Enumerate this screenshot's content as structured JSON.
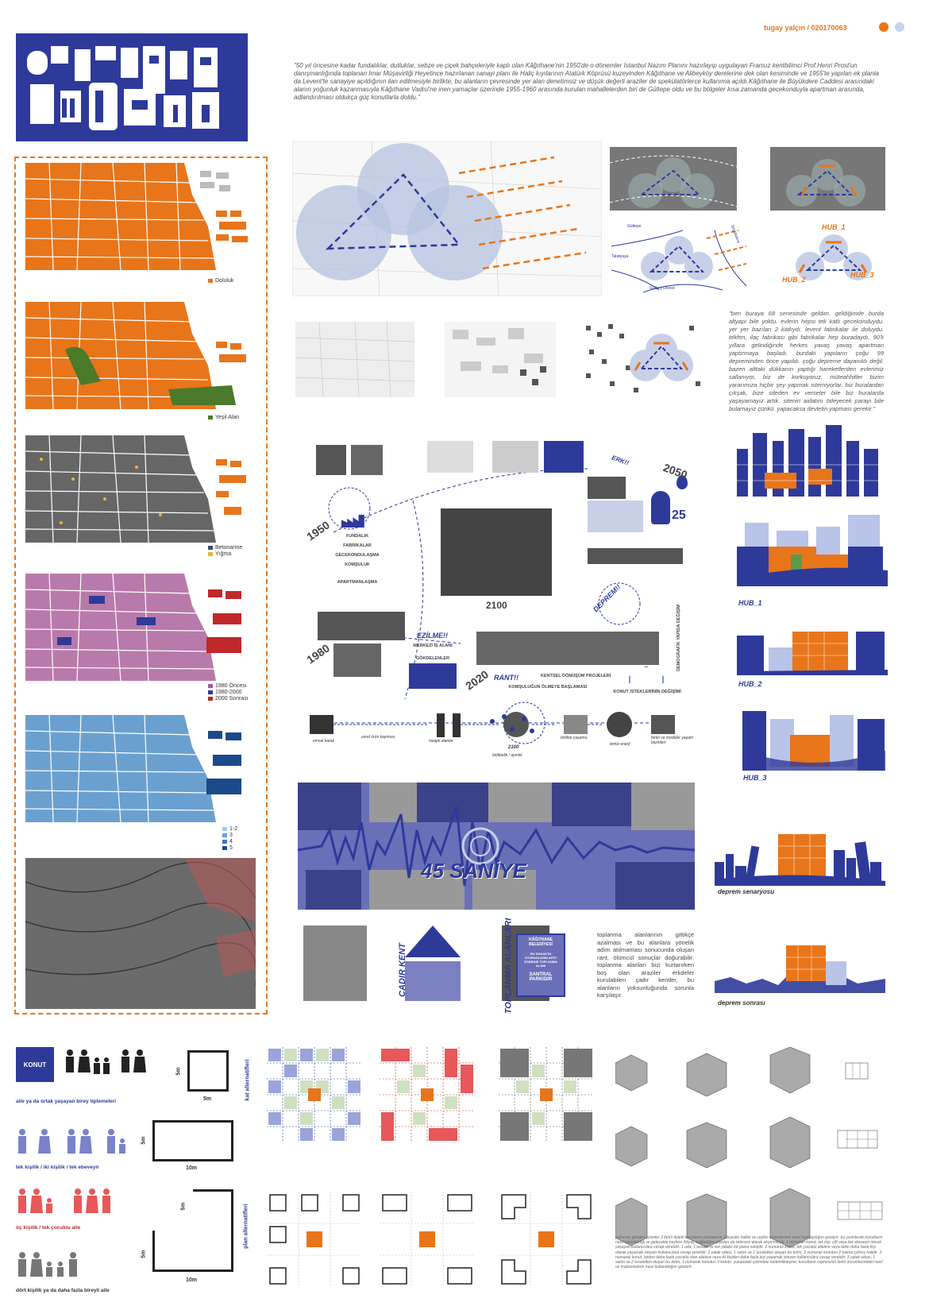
{
  "header": {
    "logo_letters": [
      "G",
      "Ü",
      "L",
      "T",
      "E",
      "P",
      "E",
      "H",
      "U",
      "B"
    ],
    "author": "tugay yalçın / 020170063",
    "accent_orange": "#e8751a",
    "accent_blue": "#2e3a9a",
    "dot_light": "#c9d3ea"
  },
  "intro_text": "\"50 yıl öncesine kadar fundalıklar, dutluklar, sebze ve çiçek bahçeleriyle kaplı olan Kâğıthane'nin 1950'de o dönemler İstanbul Nazım Planını hazırlayıp uygulayan Fransız kentbilimci Prof.Henri Prost'un danışmanlığında toplanan İmar Müşavirliği Heyetince hazırlanan sanayi planı ile Haliç kıyılarının Atatürk Köprüsü kuzeyinden Kâğıthane ve Alibeyköy derelerine dek olan kesiminde ve 1955'te yapılan ek planla da Levent'te sanayiye açıldığının ilan edilmesiyle birlikte, bu alanların çevresinde yer alan denetimsiz ve düşük değerli araziler de spekülatörlerce kullanıma açıldı.Kâğıthane ile Büyükdere Caddesi arasındaki alanın yoğunluk kazanmasıyla Kâğıthane Vadisi'ne inen yamaçlar üzerinde 1955-1960 arasında kurulan mahallelerden biri de Gültepe oldu ve bu bölgeler kısa zamanda gecekonduyla apartman arasında, adlandırılması oldukça güç konutlarla doldu.\"",
  "quote_text": "\"ben buraya 68 senesinde geldim. geldiğimde burda altyapı bile yoktu. evlerin hepsi tek katlı gecekonduydu. yer yer bazıları 2 katlıydı. levent fabrikalar ile doluydu. tekfen, ilaç fabrikası gibi fabrikalar hep buradaydı. 90'lı yıllara gelindiğinde herkes yavaş yavaş apartman yaptırmaya başladı. burdaki yapıların çoğu 99 depreminden önce yapıldı. çoğu depreme dayanıklı değil. bazen alttaki dükkanın yaptığı hareketlerden evlerimiz sallanıyor, biz de korkuyoruz. müteahhitler bizim yararımıza hiçbir şey yapmak istemiyorlar. biz buralardan çıkşak, bize siteden ev verseler bile biz buralarda yaşayamayız artık. sitenin aidatını ödeyecek parayı bile bulamayız çünkü. yapacaksa devletin yapması gerekir.\"",
  "left_maps": [
    {
      "legend": [
        {
          "label": "Doluluk",
          "color": "#e8751a"
        }
      ]
    },
    {
      "legend": [
        {
          "label": "Yeşil Alan",
          "color": "#4a7a2a"
        }
      ]
    },
    {
      "legend": [
        {
          "label": "Betonarme",
          "color": "#3d4a5a"
        },
        {
          "label": "Yığma",
          "color": "#e8b830"
        }
      ]
    },
    {
      "legend": [
        {
          "label": "1980 Öncesi",
          "color": "#a05a9a"
        },
        {
          "label": "1980-2000",
          "color": "#2e3a9a"
        },
        {
          "label": "2000 Sonrası",
          "color": "#c0282a"
        }
      ]
    },
    {
      "legend": [
        {
          "label": "1-2",
          "color": "#a8c8e8"
        },
        {
          "label": "3",
          "color": "#6aa0d0"
        },
        {
          "label": "4",
          "color": "#3a78b8"
        },
        {
          "label": "5",
          "color": "#1a4a8a"
        }
      ]
    }
  ],
  "site_labels": {
    "hub1": "HUB_1",
    "hub2": "HUB_2",
    "hub3": "HUB_3",
    "road1": "Talatpaşa",
    "road2": "Büyükdere",
    "road3": "Gültepe",
    "road4": "Gülbey Deresi"
  },
  "timeline": {
    "y1950": "1950",
    "y1980": "1980",
    "y2020": "2020",
    "y2050": "2050",
    "y2100": "2100",
    "stages": [
      "FUNDALIK",
      "FABRİKALAR",
      "GECEKONDULAŞMA",
      "KOMŞULUK",
      "APARTMANLAŞMA"
    ],
    "ezilme": "EZİLME!!",
    "merkezi": "MERKEZİ İŞ ALANI",
    "gokdelenler": "GÖKDELENLER",
    "ranti": "RANT!!",
    "kentsel": "KENTSEL DÖNÜŞÜM PROJELERİ",
    "komsuluk_olme": "KOMŞULUĞUN ÖLMEYE BAŞLAMASI",
    "konut_istek": "KONUT İSTEKLERİNİN DEĞİŞİMİ",
    "demografik": "DEMOGRAFİK YAPIDA DEĞİŞİM",
    "deprem": "DEPREM!!",
    "erki": "ERK!!",
    "num25": "25",
    "bottom_labels": [
      "emsal karak",
      "yerel ürün kayması",
      "hizaplı alanlar",
      "2100",
      "birliktelik / aynılık",
      "birlikte yaşama",
      "temiz enerji",
      "farklı ve modüler yaşam biçimleri"
    ]
  },
  "hub_labels": {
    "hub1": "HUB_1",
    "hub2": "HUB_2",
    "hub3": "HUB_3"
  },
  "quake": {
    "title": "45 SANİYE",
    "senaryo": "deprem senaryosu",
    "sonrasi": "deprem sonrası",
    "cadir": "ÇADIR KENT",
    "toplanma": "TOPLANMA ALANLARI",
    "sign": [
      "KÂĞITHANE BELEDİYESİ",
      "BU SOKAKTA OTURANLARIN AFET SONRASI TOPLANMA ALANI",
      "SANTRAL PARKIDIR"
    ],
    "text": "toplanma alanlarının gittikçe azalması ve bu alanlara yönelik adım atılmaması sonucunda oluşan rant, ölümcül sonuçlar doğurabilir. toplanma alanları bizi kurtarırken boş olan araziler erkdeler kurulabilen çadır kentler, bu alanların yoksunluğunda sorunla karşılaşır."
  },
  "konut": {
    "badge": "KONUT",
    "group1": "aile ya da ortak yaşayan birey tiplemeleri",
    "group2": "tek kişilik / iki kişilik / tek ebeveyn",
    "group3": "üç kişilik / tek çocuklu aile",
    "group4": "dört kişilik ya da daha fazla bireyli aile",
    "dim5m": "5m",
    "dim10m": "10m",
    "kat": "kat alternatifleri",
    "plan": "plan alternatifleri",
    "bottom_text": "yukarıda görülen çizimler 3 farklı tipteki konutların planlarının 3 boyutlu hallini ve cephe sistemlerinin nasıl farklılaştığını gösterir. bu çizimlerde konutların nasıl hacimlediği ve gelecekte heylere ihtiyaç sağladığını planları da referans alarak okunmalıdır. 1 numaralı konut; tek kişi, çift veya tek ebeveyn olarak yaşayan kullanıcılara cevap verebilir. 1 oda, 1 tuvalet ve tek yataklı bir plana sahiptir. 2 numaralı konut, tek çocuklu ailelere veya tekin daha fazla kişi olarak yaşamak isteyen kullanıcılara cevap verebilir. 2 yatak odası, 1 salon ve 1 tuvaletten oluşan bu birim, 3 numaralı konutun 2 katına çıkmış halidir. 3 numaralı konut, birden daha fazla çocuklu olan ailelere veya iki kişiden daha fazla kişi yaşamak isteyen kullanıcılara cevap verebilir. 3 yatak odası, 1 salon ve 2 tuvaletten oluşan bu birim, 1 numaralı konutun 3 katıdır. yukarıdaki çizimdeki kademlikleşme, konutların cephesinin farklı durumlarındaki nasıl ve malzemelerin nasıl kullanıldığını gösterir."
  }
}
